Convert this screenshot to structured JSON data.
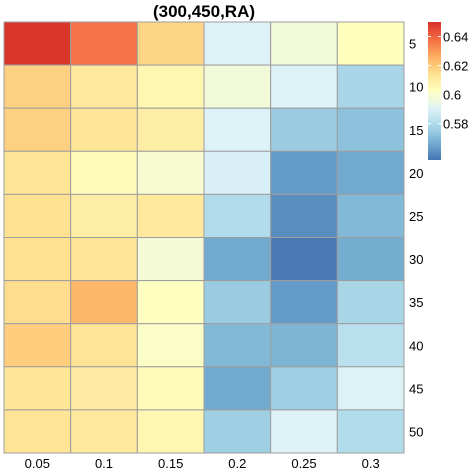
{
  "chart_data": {
    "type": "heatmap",
    "title": "(300,450,RA)",
    "x": [
      "0.05",
      "0.1",
      "0.15",
      "0.2",
      "0.25",
      "0.3"
    ],
    "y": [
      "5",
      "10",
      "15",
      "20",
      "25",
      "30",
      "35",
      "40",
      "45",
      "50"
    ],
    "values": [
      [
        0.649,
        0.637,
        0.617,
        0.59,
        0.597,
        0.603
      ],
      [
        0.618,
        0.611,
        0.606,
        0.597,
        0.59,
        0.578
      ],
      [
        0.618,
        0.612,
        0.609,
        0.59,
        0.575,
        0.572
      ],
      [
        0.613,
        0.604,
        0.599,
        0.589,
        0.563,
        0.566
      ],
      [
        0.614,
        0.609,
        0.611,
        0.58,
        0.56,
        0.57
      ],
      [
        0.614,
        0.613,
        0.598,
        0.566,
        0.556,
        0.567
      ],
      [
        0.615,
        0.624,
        0.602,
        0.575,
        0.563,
        0.578
      ],
      [
        0.619,
        0.613,
        0.601,
        0.57,
        0.569,
        0.582
      ],
      [
        0.612,
        0.61,
        0.604,
        0.566,
        0.576,
        0.59
      ],
      [
        0.613,
        0.611,
        0.606,
        0.576,
        0.59,
        0.58
      ]
    ],
    "colorbar": {
      "ticks": [
        0.64,
        0.62,
        0.6,
        0.58
      ],
      "tick_labels": [
        "0.64",
        "0.62",
        "0.6",
        "0.58"
      ],
      "range": [
        0.555,
        0.65
      ],
      "colors": [
        "#4575b4",
        "#74add1",
        "#abd9e9",
        "#e0f3f8",
        "#ffffbf",
        "#fee090",
        "#fdae61",
        "#f46d43",
        "#d73027"
      ],
      "placement": "right"
    },
    "x_axis_position": "bottom",
    "y_axis_position": "right",
    "grid": false,
    "cell_border_color": "#9e9e9e"
  }
}
